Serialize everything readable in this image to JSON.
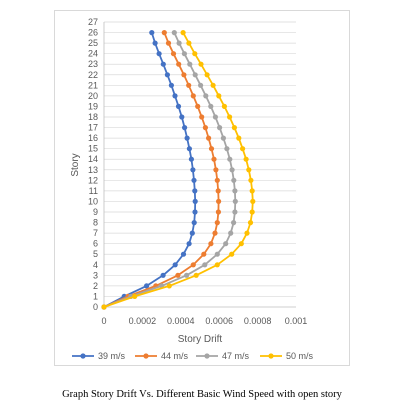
{
  "caption": "Graph Story Drift Vs.  Different Basic Wind Speed with open story",
  "chart_data": {
    "type": "line",
    "title": "",
    "xlabel": "Story Drift",
    "ylabel": "Story",
    "xlim": [
      0,
      0.001
    ],
    "ylim": [
      0,
      27
    ],
    "x_ticks": [
      "0",
      "0.0002",
      "0.0004",
      "0.0006",
      "0.0008",
      "0.001"
    ],
    "y_ticks": [
      "0",
      "1",
      "2",
      "3",
      "4",
      "5",
      "6",
      "7",
      "8",
      "9",
      "10",
      "11",
      "12",
      "13",
      "14",
      "15",
      "16",
      "17",
      "18",
      "19",
      "20",
      "21",
      "22",
      "23",
      "24",
      "25",
      "26",
      "27"
    ],
    "grid": "horizontal",
    "legend_position": "bottom",
    "series": [
      {
        "name": "39 m/s",
        "color": "#4472C4",
        "points": [
          [
            0,
            0
          ],
          [
            0.000105,
            1
          ],
          [
            0.000222,
            2
          ],
          [
            0.000308,
            3
          ],
          [
            0.000371,
            4
          ],
          [
            0.000414,
            5
          ],
          [
            0.000443,
            6
          ],
          [
            0.00046,
            7
          ],
          [
            0.00047,
            8
          ],
          [
            0.000474,
            9
          ],
          [
            0.000475,
            10
          ],
          [
            0.000473,
            11
          ],
          [
            0.000469,
            12
          ],
          [
            0.000463,
            13
          ],
          [
            0.000455,
            14
          ],
          [
            0.000445,
            15
          ],
          [
            0.000433,
            16
          ],
          [
            0.00042,
            17
          ],
          [
            0.000405,
            18
          ],
          [
            0.000388,
            19
          ],
          [
            0.00037,
            20
          ],
          [
            0.000351,
            21
          ],
          [
            0.00033,
            22
          ],
          [
            0.000309,
            23
          ],
          [
            0.000287,
            24
          ],
          [
            0.000266,
            25
          ],
          [
            0.000249,
            26
          ]
        ]
      },
      {
        "name": "44 m/s",
        "color": "#ED7D31",
        "points": [
          [
            0,
            0
          ],
          [
            0.000125,
            1
          ],
          [
            0.00027,
            2
          ],
          [
            0.000385,
            3
          ],
          [
            0.000465,
            4
          ],
          [
            0.00052,
            5
          ],
          [
            0.000557,
            6
          ],
          [
            0.000578,
            7
          ],
          [
            0.00059,
            8
          ],
          [
            0.000596,
            9
          ],
          [
            0.000597,
            10
          ],
          [
            0.000595,
            11
          ],
          [
            0.00059,
            12
          ],
          [
            0.000583,
            13
          ],
          [
            0.000573,
            14
          ],
          [
            0.00056,
            15
          ],
          [
            0.000545,
            16
          ],
          [
            0.000528,
            17
          ],
          [
            0.000509,
            18
          ],
          [
            0.000488,
            19
          ],
          [
            0.000465,
            20
          ],
          [
            0.000441,
            21
          ],
          [
            0.000416,
            22
          ],
          [
            0.000389,
            23
          ],
          [
            0.000362,
            24
          ],
          [
            0.000336,
            25
          ],
          [
            0.000314,
            26
          ]
        ]
      },
      {
        "name": "47 m/s",
        "color": "#A5A5A5",
        "points": [
          [
            0,
            0
          ],
          [
            0.00014,
            1
          ],
          [
            0.0003,
            2
          ],
          [
            0.00043,
            3
          ],
          [
            0.000525,
            4
          ],
          [
            0.00059,
            5
          ],
          [
            0.000634,
            6
          ],
          [
            0.00066,
            7
          ],
          [
            0.000675,
            8
          ],
          [
            0.000682,
            9
          ],
          [
            0.000684,
            10
          ],
          [
            0.000682,
            11
          ],
          [
            0.000676,
            12
          ],
          [
            0.000667,
            13
          ],
          [
            0.000655,
            14
          ],
          [
            0.00064,
            15
          ],
          [
            0.000622,
            16
          ],
          [
            0.000602,
            17
          ],
          [
            0.00058,
            18
          ],
          [
            0.000556,
            19
          ],
          [
            0.00053,
            20
          ],
          [
            0.000503,
            21
          ],
          [
            0.000475,
            22
          ],
          [
            0.000447,
            23
          ],
          [
            0.000419,
            24
          ],
          [
            0.000391,
            25
          ],
          [
            0.000366,
            26
          ]
        ]
      },
      {
        "name": "50 m/s",
        "color": "#FFC000",
        "points": [
          [
            0,
            0
          ],
          [
            0.00016,
            1
          ],
          [
            0.00034,
            2
          ],
          [
            0.00048,
            3
          ],
          [
            0.00059,
            4
          ],
          [
            0.000665,
            5
          ],
          [
            0.000715,
            6
          ],
          [
            0.000745,
            7
          ],
          [
            0.000763,
            8
          ],
          [
            0.000772,
            9
          ],
          [
            0.000775,
            10
          ],
          [
            0.000772,
            11
          ],
          [
            0.000765,
            12
          ],
          [
            0.000754,
            13
          ],
          [
            0.00074,
            14
          ],
          [
            0.000722,
            15
          ],
          [
            0.000702,
            16
          ],
          [
            0.000679,
            17
          ],
          [
            0.000654,
            18
          ],
          [
            0.000627,
            19
          ],
          [
            0.000598,
            20
          ],
          [
            0.000568,
            21
          ],
          [
            0.000537,
            22
          ],
          [
            0.000505,
            23
          ],
          [
            0.000473,
            24
          ],
          [
            0.000442,
            25
          ],
          [
            0.000412,
            26
          ]
        ]
      }
    ]
  }
}
